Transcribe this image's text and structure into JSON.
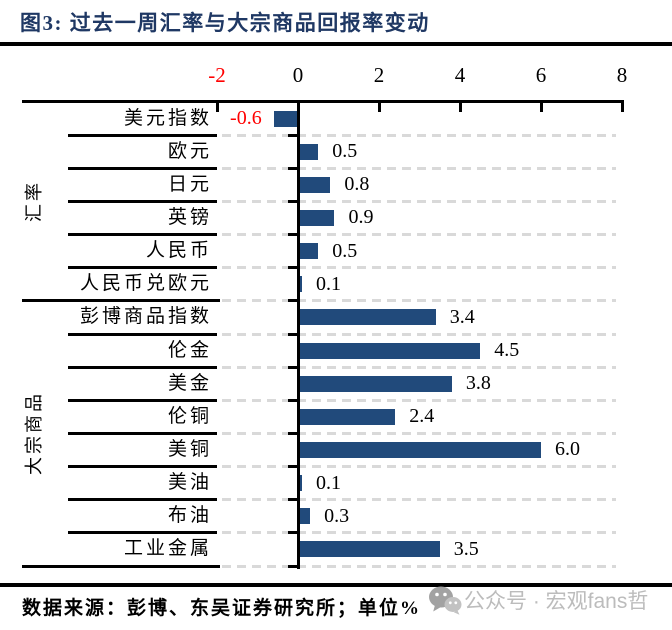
{
  "title": "图3: 过去一周汇率与大宗商品回报率变动",
  "source_note": "数据来源：彭博、东吴证券研究所；单位%",
  "watermark": {
    "icon": "wechat-icon",
    "text": "公众号 · 宏观fans哲"
  },
  "colors": {
    "title_navy": "#1F3864",
    "bar_navy": "#214A7B",
    "negative_red": "#FF0000",
    "gridline_gray": "#D9D9D9",
    "axis_black": "#000000",
    "watermark_gray": "#BCBCBC"
  },
  "chart_data": {
    "type": "bar",
    "orientation": "horizontal",
    "title": "过去一周汇率与大宗商品回报率变动",
    "unit": "%",
    "xlim": [
      -2,
      8
    ],
    "x_ticks": [
      -2,
      0,
      2,
      4,
      6,
      8
    ],
    "grid": "dashed-horizontal",
    "value_labels": "outside-end, one decimal, negatives in red",
    "groups": [
      {
        "label": "汇率",
        "items": [
          {
            "label": "美元指数",
            "value": -0.6
          },
          {
            "label": "欧元",
            "value": 0.5
          },
          {
            "label": "日元",
            "value": 0.8
          },
          {
            "label": "英镑",
            "value": 0.9
          },
          {
            "label": "人民币",
            "value": 0.5
          },
          {
            "label": "人民币兑欧元",
            "value": 0.1
          }
        ]
      },
      {
        "label": "大宗商品",
        "items": [
          {
            "label": "彭博商品指数",
            "value": 3.4
          },
          {
            "label": "伦金",
            "value": 4.5
          },
          {
            "label": "美金",
            "value": 3.8
          },
          {
            "label": "伦铜",
            "value": 2.4
          },
          {
            "label": "美铜",
            "value": 6.0
          },
          {
            "label": "美油",
            "value": 0.1
          },
          {
            "label": "布油",
            "value": 0.3
          },
          {
            "label": "工业金属",
            "value": 3.5
          }
        ]
      }
    ]
  }
}
